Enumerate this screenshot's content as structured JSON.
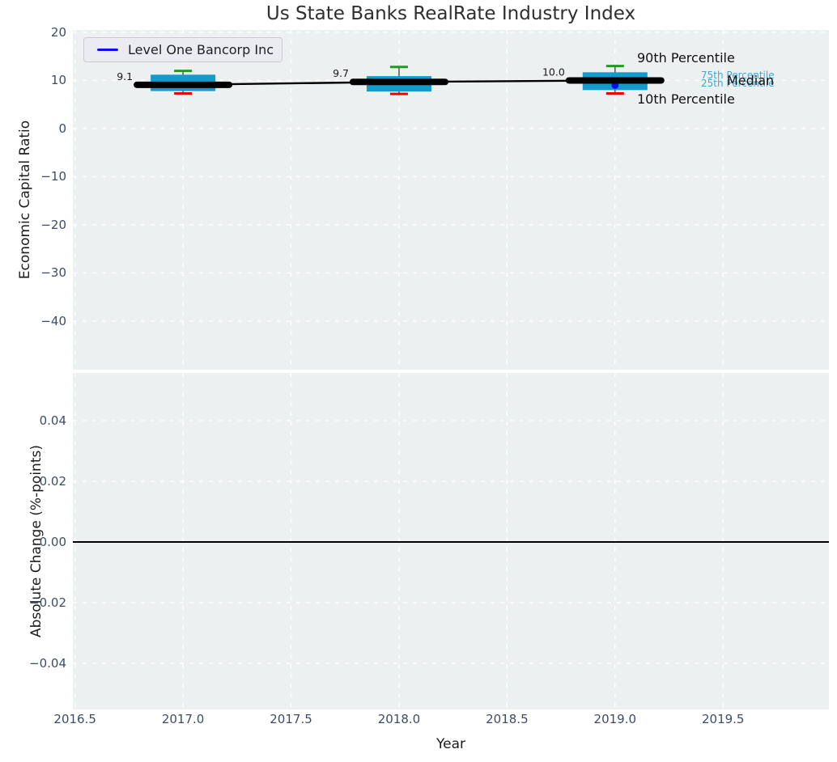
{
  "figure": {
    "title": "Us State Banks RealRate Industry Index",
    "xlabel": "Year",
    "legend": {
      "label": "Level One Bancorp Inc"
    },
    "annotations": {
      "p90": "90th Percentile",
      "p75": "75th Percentile",
      "p25": "25th Percentile",
      "median": "Median",
      "p10": "10th Percentile"
    }
  },
  "style": {
    "panel_bg": "#ecf0f1",
    "grid_color": "#ffffff",
    "tick_color": "#3d4d66",
    "box_color": "#149bce",
    "p90_cap_color": "#1c9e1c",
    "p10_cap_color": "#f20000",
    "whisker_color": "#3c3c3c",
    "median_line_color": "#000000",
    "company_color": "#0d0df5",
    "percentile_text_color": "#3aa8db",
    "zero_line_color": "#000000"
  },
  "chart_data": [
    {
      "type": "boxplot",
      "title": "Us State Banks RealRate Industry Index",
      "ylabel": "Economic Capital Ratio",
      "x": [
        2017,
        2018,
        2019
      ],
      "medians": [
        9.1,
        9.7,
        10.0
      ],
      "median_labels": [
        "9.1",
        "9.7",
        "10.0"
      ],
      "q1": [
        7.8,
        7.7,
        8.0
      ],
      "q3": [
        11.2,
        10.9,
        11.7
      ],
      "p10": [
        7.3,
        7.2,
        7.3
      ],
      "p90": [
        12.0,
        12.8,
        13.0
      ],
      "company_series": {
        "name": "Level One Bancorp Inc",
        "points": [
          {
            "x": 2019,
            "y": 9.0
          }
        ]
      },
      "xlim": [
        2016.49,
        2019.99
      ],
      "ylim": [
        -50.1,
        20.5
      ],
      "grid": true,
      "legend_position": "upper left",
      "xticks": [
        {
          "value": 2016.5,
          "label": "2016.5"
        },
        {
          "value": 2017.0,
          "label": "2017.0"
        },
        {
          "value": 2017.5,
          "label": "2017.5"
        },
        {
          "value": 2018.0,
          "label": "2018.0"
        },
        {
          "value": 2018.5,
          "label": "2018.5"
        },
        {
          "value": 2019.0,
          "label": "2019.0"
        },
        {
          "value": 2019.5,
          "label": "2019.5"
        }
      ],
      "yticks": [
        {
          "value": 20,
          "label": "20"
        },
        {
          "value": 10,
          "label": "10"
        },
        {
          "value": 0,
          "label": "0"
        },
        {
          "value": -10,
          "label": "−10"
        },
        {
          "value": -20,
          "label": "−20"
        },
        {
          "value": -30,
          "label": "−30"
        },
        {
          "value": -40,
          "label": "−40"
        }
      ]
    },
    {
      "type": "line",
      "ylabel": "Absolute Change (%-points)",
      "xlabel": "Year",
      "zero_line": 0.0,
      "series": [],
      "xlim": [
        2016.49,
        2019.99
      ],
      "ylim": [
        -0.0552,
        0.0557
      ],
      "grid": true,
      "yticks": [
        {
          "value": 0.04,
          "label": "0.04"
        },
        {
          "value": 0.02,
          "label": "0.02"
        },
        {
          "value": 0.0,
          "label": "0.00"
        },
        {
          "value": -0.02,
          "label": "−0.02"
        },
        {
          "value": -0.04,
          "label": "−0.04"
        }
      ]
    }
  ]
}
